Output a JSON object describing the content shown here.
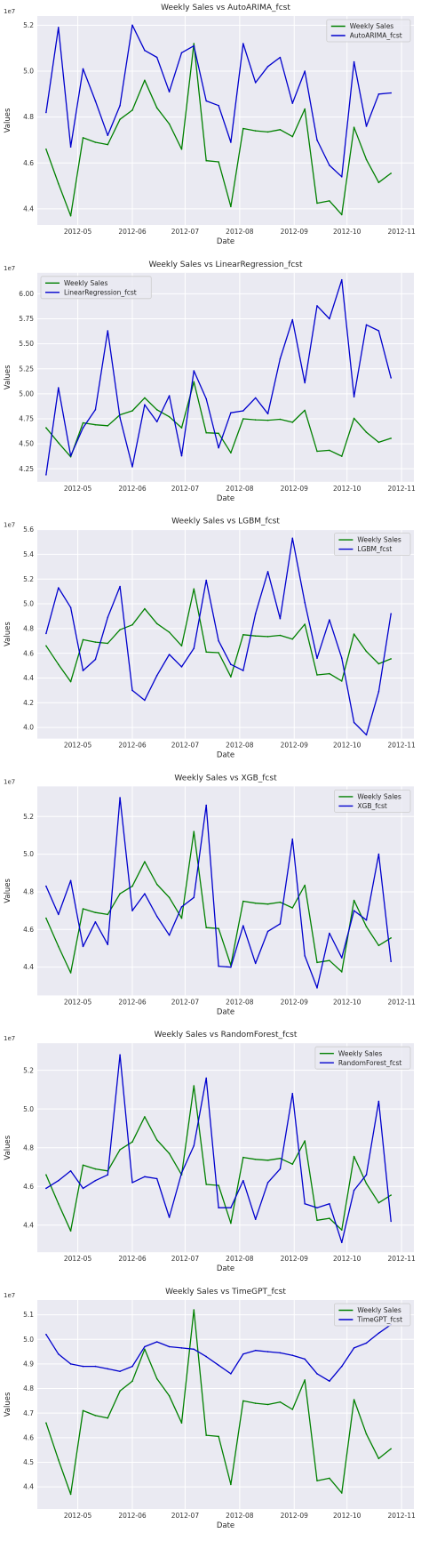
{
  "colors": {
    "plot_background": "#eaeaf2",
    "grid": "#ffffff",
    "actual": "#008000",
    "forecast": "#0000cd"
  },
  "x_ticks": [
    "2012-05",
    "2012-06",
    "2012-07",
    "2012-08",
    "2012-09",
    "2012-10",
    "2012-11"
  ],
  "chart_data": [
    {
      "type": "line",
      "title": "Weekly Sales vs AutoARIMA_fcst",
      "xlabel": "Date",
      "ylabel": "Values",
      "y_offset": "1e7",
      "xlim": [
        "2012-04-08",
        "2012-11-08"
      ],
      "ylim": [
        43.3,
        52.4
      ],
      "y_ticks": [
        "4.4",
        "4.6",
        "4.8",
        "5.0",
        "5.2"
      ],
      "y_tick_values": [
        44,
        46,
        48,
        50,
        52
      ],
      "legend_position": "upper right",
      "grid": true,
      "x": [
        "2012-04-13",
        "2012-04-20",
        "2012-04-27",
        "2012-05-04",
        "2012-05-11",
        "2012-05-18",
        "2012-05-25",
        "2012-06-01",
        "2012-06-08",
        "2012-06-15",
        "2012-06-22",
        "2012-06-29",
        "2012-07-06",
        "2012-07-13",
        "2012-07-20",
        "2012-07-27",
        "2012-08-03",
        "2012-08-10",
        "2012-08-17",
        "2012-08-24",
        "2012-08-31",
        "2012-09-07",
        "2012-09-14",
        "2012-09-21",
        "2012-09-28",
        "2012-10-05",
        "2012-10-12",
        "2012-10-19",
        "2012-10-26"
      ],
      "series": [
        {
          "name": "Weekly Sales",
          "color": "#008000",
          "values": [
            46.6,
            45.1,
            43.7,
            47.1,
            46.9,
            46.8,
            47.9,
            48.3,
            49.6,
            48.4,
            47.7,
            46.6,
            51.2,
            46.1,
            46.05,
            44.1,
            47.5,
            47.4,
            47.35,
            47.45,
            47.15,
            48.35,
            44.25,
            44.35,
            43.75,
            47.55,
            46.15,
            45.15,
            45.55
          ]
        },
        {
          "name": "AutoARIMA_fcst",
          "color": "#0000cd",
          "values": [
            48.2,
            51.9,
            46.7,
            50.1,
            48.7,
            47.2,
            48.5,
            52.0,
            50.9,
            50.6,
            49.1,
            50.8,
            51.1,
            48.7,
            48.5,
            46.9,
            51.2,
            49.5,
            50.2,
            50.6,
            48.6,
            50.0,
            47.0,
            45.9,
            45.4,
            50.4,
            47.6,
            49.0,
            49.05
          ]
        }
      ]
    },
    {
      "type": "line",
      "title": "Weekly Sales vs LinearRegression_fcst",
      "xlabel": "Date",
      "ylabel": "Values",
      "y_offset": "1e7",
      "xlim": [
        "2012-04-08",
        "2012-11-08"
      ],
      "ylim": [
        41.2,
        62.1
      ],
      "y_ticks": [
        "4.25",
        "4.50",
        "4.75",
        "5.00",
        "5.25",
        "5.50",
        "5.75",
        "6.00"
      ],
      "y_tick_values": [
        42.5,
        45,
        47.5,
        50,
        52.5,
        55,
        57.5,
        60
      ],
      "legend_position": "upper left",
      "grid": true,
      "x": [
        "2012-04-13",
        "2012-04-20",
        "2012-04-27",
        "2012-05-04",
        "2012-05-11",
        "2012-05-18",
        "2012-05-25",
        "2012-06-01",
        "2012-06-08",
        "2012-06-15",
        "2012-06-22",
        "2012-06-29",
        "2012-07-06",
        "2012-07-13",
        "2012-07-20",
        "2012-07-27",
        "2012-08-03",
        "2012-08-10",
        "2012-08-17",
        "2012-08-24",
        "2012-08-31",
        "2012-09-07",
        "2012-09-14",
        "2012-09-21",
        "2012-09-28",
        "2012-10-05",
        "2012-10-12",
        "2012-10-19",
        "2012-10-26"
      ],
      "series": [
        {
          "name": "Weekly Sales",
          "color": "#008000",
          "values": [
            46.6,
            45.1,
            43.7,
            47.1,
            46.9,
            46.8,
            47.9,
            48.3,
            49.6,
            48.4,
            47.7,
            46.6,
            51.2,
            46.1,
            46.05,
            44.1,
            47.5,
            47.4,
            47.35,
            47.45,
            47.15,
            48.35,
            44.25,
            44.35,
            43.75,
            47.55,
            46.15,
            45.15,
            45.55
          ]
        },
        {
          "name": "LinearRegression_fcst",
          "color": "#0000cd",
          "values": [
            41.9,
            50.6,
            43.8,
            46.6,
            48.4,
            56.3,
            47.6,
            42.7,
            48.9,
            47.2,
            49.8,
            43.8,
            52.3,
            49.5,
            44.6,
            48.1,
            48.3,
            49.6,
            48.0,
            53.5,
            57.4,
            51.1,
            58.8,
            57.5,
            61.4,
            49.7,
            56.9,
            56.3,
            51.6
          ]
        }
      ]
    },
    {
      "type": "line",
      "title": "Weekly Sales vs LGBM_fcst",
      "xlabel": "Date",
      "ylabel": "Values",
      "y_offset": "1e7",
      "xlim": [
        "2012-04-08",
        "2012-11-08"
      ],
      "ylim": [
        39.1,
        56.0
      ],
      "y_ticks": [
        "4.0",
        "4.2",
        "4.4",
        "4.6",
        "4.8",
        "5.0",
        "5.2",
        "5.4",
        "5.6"
      ],
      "y_tick_values": [
        40,
        42,
        44,
        46,
        48,
        50,
        52,
        54,
        56
      ],
      "legend_position": "upper right",
      "grid": true,
      "x": [
        "2012-04-13",
        "2012-04-20",
        "2012-04-27",
        "2012-05-04",
        "2012-05-11",
        "2012-05-18",
        "2012-05-25",
        "2012-06-01",
        "2012-06-08",
        "2012-06-15",
        "2012-06-22",
        "2012-06-29",
        "2012-07-06",
        "2012-07-13",
        "2012-07-20",
        "2012-07-27",
        "2012-08-03",
        "2012-08-10",
        "2012-08-17",
        "2012-08-24",
        "2012-08-31",
        "2012-09-07",
        "2012-09-14",
        "2012-09-21",
        "2012-09-28",
        "2012-10-05",
        "2012-10-12",
        "2012-10-19",
        "2012-10-26"
      ],
      "series": [
        {
          "name": "Weekly Sales",
          "color": "#008000",
          "values": [
            46.6,
            45.1,
            43.7,
            47.1,
            46.9,
            46.8,
            47.9,
            48.3,
            49.6,
            48.4,
            47.7,
            46.6,
            51.2,
            46.1,
            46.05,
            44.1,
            47.5,
            47.4,
            47.35,
            47.45,
            47.15,
            48.35,
            44.25,
            44.35,
            43.75,
            47.55,
            46.15,
            45.15,
            45.55
          ]
        },
        {
          "name": "LGBM_fcst",
          "color": "#0000cd",
          "values": [
            47.6,
            51.3,
            49.7,
            44.6,
            45.5,
            48.9,
            51.4,
            43.0,
            42.2,
            44.2,
            45.9,
            44.9,
            46.4,
            51.9,
            47.0,
            45.1,
            44.6,
            49.2,
            52.6,
            48.8,
            55.3,
            50.1,
            45.6,
            48.7,
            45.6,
            40.4,
            39.4,
            42.9,
            49.2
          ]
        }
      ]
    },
    {
      "type": "line",
      "title": "Weekly Sales vs XGB_fcst",
      "xlabel": "Date",
      "ylabel": "Values",
      "y_offset": "1e7",
      "xlim": [
        "2012-04-08",
        "2012-11-08"
      ],
      "ylim": [
        42.5,
        53.6
      ],
      "y_ticks": [
        "4.4",
        "4.6",
        "4.8",
        "5.0",
        "5.2"
      ],
      "y_tick_values": [
        44,
        46,
        48,
        50,
        52
      ],
      "legend_position": "upper right",
      "grid": true,
      "x": [
        "2012-04-13",
        "2012-04-20",
        "2012-04-27",
        "2012-05-04",
        "2012-05-11",
        "2012-05-18",
        "2012-05-25",
        "2012-06-01",
        "2012-06-08",
        "2012-06-15",
        "2012-06-22",
        "2012-06-29",
        "2012-07-06",
        "2012-07-13",
        "2012-07-20",
        "2012-07-27",
        "2012-08-03",
        "2012-08-10",
        "2012-08-17",
        "2012-08-24",
        "2012-08-31",
        "2012-09-07",
        "2012-09-14",
        "2012-09-21",
        "2012-09-28",
        "2012-10-05",
        "2012-10-12",
        "2012-10-19",
        "2012-10-26"
      ],
      "series": [
        {
          "name": "Weekly Sales",
          "color": "#008000",
          "values": [
            46.6,
            45.1,
            43.7,
            47.1,
            46.9,
            46.8,
            47.9,
            48.3,
            49.6,
            48.4,
            47.7,
            46.6,
            51.2,
            46.1,
            46.05,
            44.1,
            47.5,
            47.4,
            47.35,
            47.45,
            47.15,
            48.35,
            44.25,
            44.35,
            43.75,
            47.55,
            46.15,
            45.15,
            45.55
          ]
        },
        {
          "name": "XGB_fcst",
          "color": "#0000cd",
          "values": [
            48.3,
            46.8,
            48.6,
            45.1,
            46.4,
            45.2,
            53.0,
            47.0,
            47.9,
            46.7,
            45.7,
            47.2,
            47.7,
            52.6,
            44.05,
            44.0,
            46.2,
            44.2,
            45.9,
            46.3,
            50.8,
            44.6,
            42.9,
            45.8,
            44.5,
            47.0,
            46.5,
            50.0,
            44.3
          ]
        }
      ]
    },
    {
      "type": "line",
      "title": "Weekly Sales vs RandomForest_fcst",
      "xlabel": "Date",
      "ylabel": "Values",
      "y_offset": "1e7",
      "xlim": [
        "2012-04-08",
        "2012-11-08"
      ],
      "ylim": [
        42.6,
        53.4
      ],
      "y_ticks": [
        "4.4",
        "4.6",
        "4.8",
        "5.0",
        "5.2"
      ],
      "y_tick_values": [
        44,
        46,
        48,
        50,
        52
      ],
      "legend_position": "upper right",
      "grid": true,
      "x": [
        "2012-04-13",
        "2012-04-20",
        "2012-04-27",
        "2012-05-04",
        "2012-05-11",
        "2012-05-18",
        "2012-05-25",
        "2012-06-01",
        "2012-06-08",
        "2012-06-15",
        "2012-06-22",
        "2012-06-29",
        "2012-07-06",
        "2012-07-13",
        "2012-07-20",
        "2012-07-27",
        "2012-08-03",
        "2012-08-10",
        "2012-08-17",
        "2012-08-24",
        "2012-08-31",
        "2012-09-07",
        "2012-09-14",
        "2012-09-21",
        "2012-09-28",
        "2012-10-05",
        "2012-10-12",
        "2012-10-19",
        "2012-10-26"
      ],
      "series": [
        {
          "name": "Weekly Sales",
          "color": "#008000",
          "values": [
            46.6,
            45.1,
            43.7,
            47.1,
            46.9,
            46.8,
            47.9,
            48.3,
            49.6,
            48.4,
            47.7,
            46.6,
            51.2,
            46.1,
            46.05,
            44.1,
            47.5,
            47.4,
            47.35,
            47.45,
            47.15,
            48.35,
            44.25,
            44.35,
            43.75,
            47.55,
            46.15,
            45.15,
            45.55
          ]
        },
        {
          "name": "RandomForest_fcst",
          "color": "#0000cd",
          "values": [
            45.9,
            46.3,
            46.8,
            45.9,
            46.3,
            46.6,
            52.8,
            46.2,
            46.5,
            46.4,
            44.4,
            46.7,
            48.1,
            51.6,
            44.9,
            44.9,
            46.3,
            44.3,
            46.2,
            46.9,
            50.8,
            45.1,
            44.9,
            45.1,
            43.1,
            45.8,
            46.6,
            50.4,
            44.2
          ]
        }
      ]
    },
    {
      "type": "line",
      "title": "Weekly Sales vs TimeGPT_fcst",
      "xlabel": "Date",
      "ylabel": "Values",
      "y_offset": "1e7",
      "xlim": [
        "2012-04-08",
        "2012-11-08"
      ],
      "ylim": [
        43.1,
        51.6
      ],
      "y_ticks": [
        "4.4",
        "4.5",
        "4.6",
        "4.7",
        "4.8",
        "4.9",
        "5.0",
        "5.1"
      ],
      "y_tick_values": [
        44,
        45,
        46,
        47,
        48,
        49,
        50,
        51
      ],
      "legend_position": "upper right",
      "grid": true,
      "x": [
        "2012-04-13",
        "2012-04-20",
        "2012-04-27",
        "2012-05-04",
        "2012-05-11",
        "2012-05-18",
        "2012-05-25",
        "2012-06-01",
        "2012-06-08",
        "2012-06-15",
        "2012-06-22",
        "2012-06-29",
        "2012-07-06",
        "2012-07-13",
        "2012-07-20",
        "2012-07-27",
        "2012-08-03",
        "2012-08-10",
        "2012-08-17",
        "2012-08-24",
        "2012-08-31",
        "2012-09-07",
        "2012-09-14",
        "2012-09-21",
        "2012-09-28",
        "2012-10-05",
        "2012-10-12",
        "2012-10-19",
        "2012-10-26"
      ],
      "series": [
        {
          "name": "Weekly Sales",
          "color": "#008000",
          "values": [
            46.6,
            45.1,
            43.7,
            47.1,
            46.9,
            46.8,
            47.9,
            48.3,
            49.6,
            48.4,
            47.7,
            46.6,
            51.2,
            46.1,
            46.05,
            44.1,
            47.5,
            47.4,
            47.35,
            47.45,
            47.15,
            48.35,
            44.25,
            44.35,
            43.75,
            47.55,
            46.15,
            45.15,
            45.55
          ]
        },
        {
          "name": "TimeGPT_fcst",
          "color": "#0000cd",
          "values": [
            50.2,
            49.4,
            49.0,
            48.9,
            48.9,
            48.8,
            48.7,
            48.9,
            49.7,
            49.9,
            49.7,
            49.65,
            49.6,
            49.3,
            48.95,
            48.6,
            49.4,
            49.55,
            49.5,
            49.45,
            49.35,
            49.2,
            48.6,
            48.3,
            48.9,
            49.65,
            49.85,
            50.25,
            50.6
          ]
        }
      ]
    }
  ]
}
